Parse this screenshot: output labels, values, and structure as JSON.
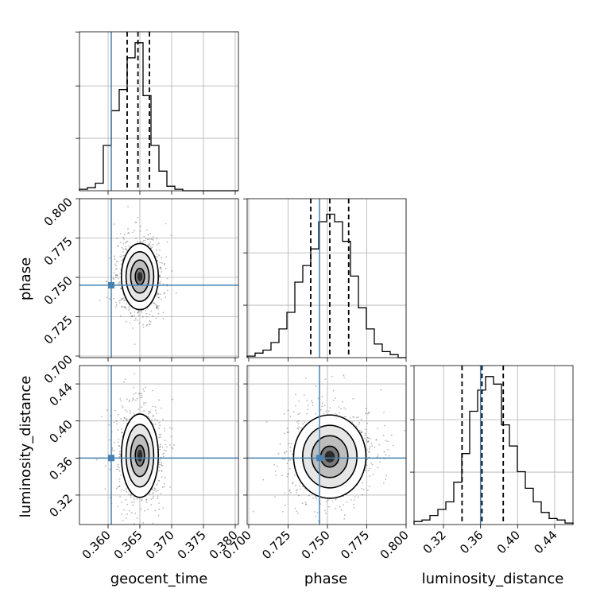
{
  "chart_data": {
    "type": "corner",
    "parameters": [
      "geocent_time",
      "phase",
      "luminosity_distance"
    ],
    "truths": {
      "geocent_time": 0.3605,
      "phase": 0.745,
      "luminosity_distance": 0.36
    },
    "truth_color": "#4682b4",
    "ranges": {
      "geocent_time": [
        0.3555,
        0.3805
      ],
      "phase": [
        0.699,
        0.8
      ],
      "luminosity_distance": [
        0.2882,
        0.4598
      ]
    },
    "ticks": {
      "geocent_time": {
        "values": [
          0.36,
          0.365,
          0.37,
          0.375,
          0.38
        ],
        "labels": [
          "0.360",
          "0.365",
          "0.370",
          "0.375",
          "0.380"
        ]
      },
      "phase": {
        "values": [
          0.7,
          0.725,
          0.75,
          0.775,
          0.8
        ],
        "labels": [
          "0.700",
          "0.725",
          "0.750",
          "0.775",
          "0.800"
        ]
      },
      "luminosity_distance": {
        "values": [
          0.32,
          0.36,
          0.4,
          0.44
        ],
        "labels": [
          "0.32",
          "0.36",
          "0.40",
          "0.44"
        ]
      }
    },
    "quantiles": {
      "geocent_time": [
        0.363,
        0.3647,
        0.3665
      ],
      "phase": [
        0.7394,
        0.7515,
        0.7635
      ],
      "luminosity_distance": [
        0.34,
        0.3615,
        0.3845
      ]
    },
    "marginals": {
      "geocent_time": [
        0.01,
        0.02,
        0.05,
        0.3,
        0.53,
        0.67,
        0.88,
        0.98,
        0.63,
        0.3,
        0.13,
        0.03,
        0.01,
        0,
        0,
        0,
        0,
        0,
        0,
        0
      ],
      "phase": [
        0.01,
        0.03,
        0.05,
        0.1,
        0.19,
        0.3,
        0.5,
        0.61,
        0.72,
        0.9,
        0.95,
        0.9,
        0.77,
        0.54,
        0.33,
        0.19,
        0.09,
        0.04,
        0.02,
        0
      ],
      "luminosity_distance": [
        0.02,
        0.03,
        0.06,
        0.1,
        0.15,
        0.28,
        0.47,
        0.75,
        0.89,
        0.98,
        0.93,
        0.66,
        0.52,
        0.35,
        0.24,
        0.15,
        0.08,
        0.04,
        0.03,
        0.01
      ]
    },
    "joint_centers": {
      "phase_vs_geocent_time": {
        "x": 0.365,
        "y": 0.7505
      },
      "luminosity_distance_vs_geocent_time": {
        "x": 0.365,
        "y": 0.3625
      },
      "luminosity_distance_vs_phase": {
        "x": 0.7515,
        "y": 0.3615
      }
    },
    "joint_sigma": {
      "phase_vs_geocent_time": {
        "x": 0.00145,
        "y": 0.0105
      },
      "luminosity_distance_vs_geocent_time": {
        "x": 0.00145,
        "y": 0.0225
      },
      "luminosity_distance_vs_phase": {
        "x": 0.0115,
        "y": 0.0225
      }
    },
    "contour_levels_sigma": [
      0.5,
      1.0,
      1.5,
      2.0
    ]
  }
}
